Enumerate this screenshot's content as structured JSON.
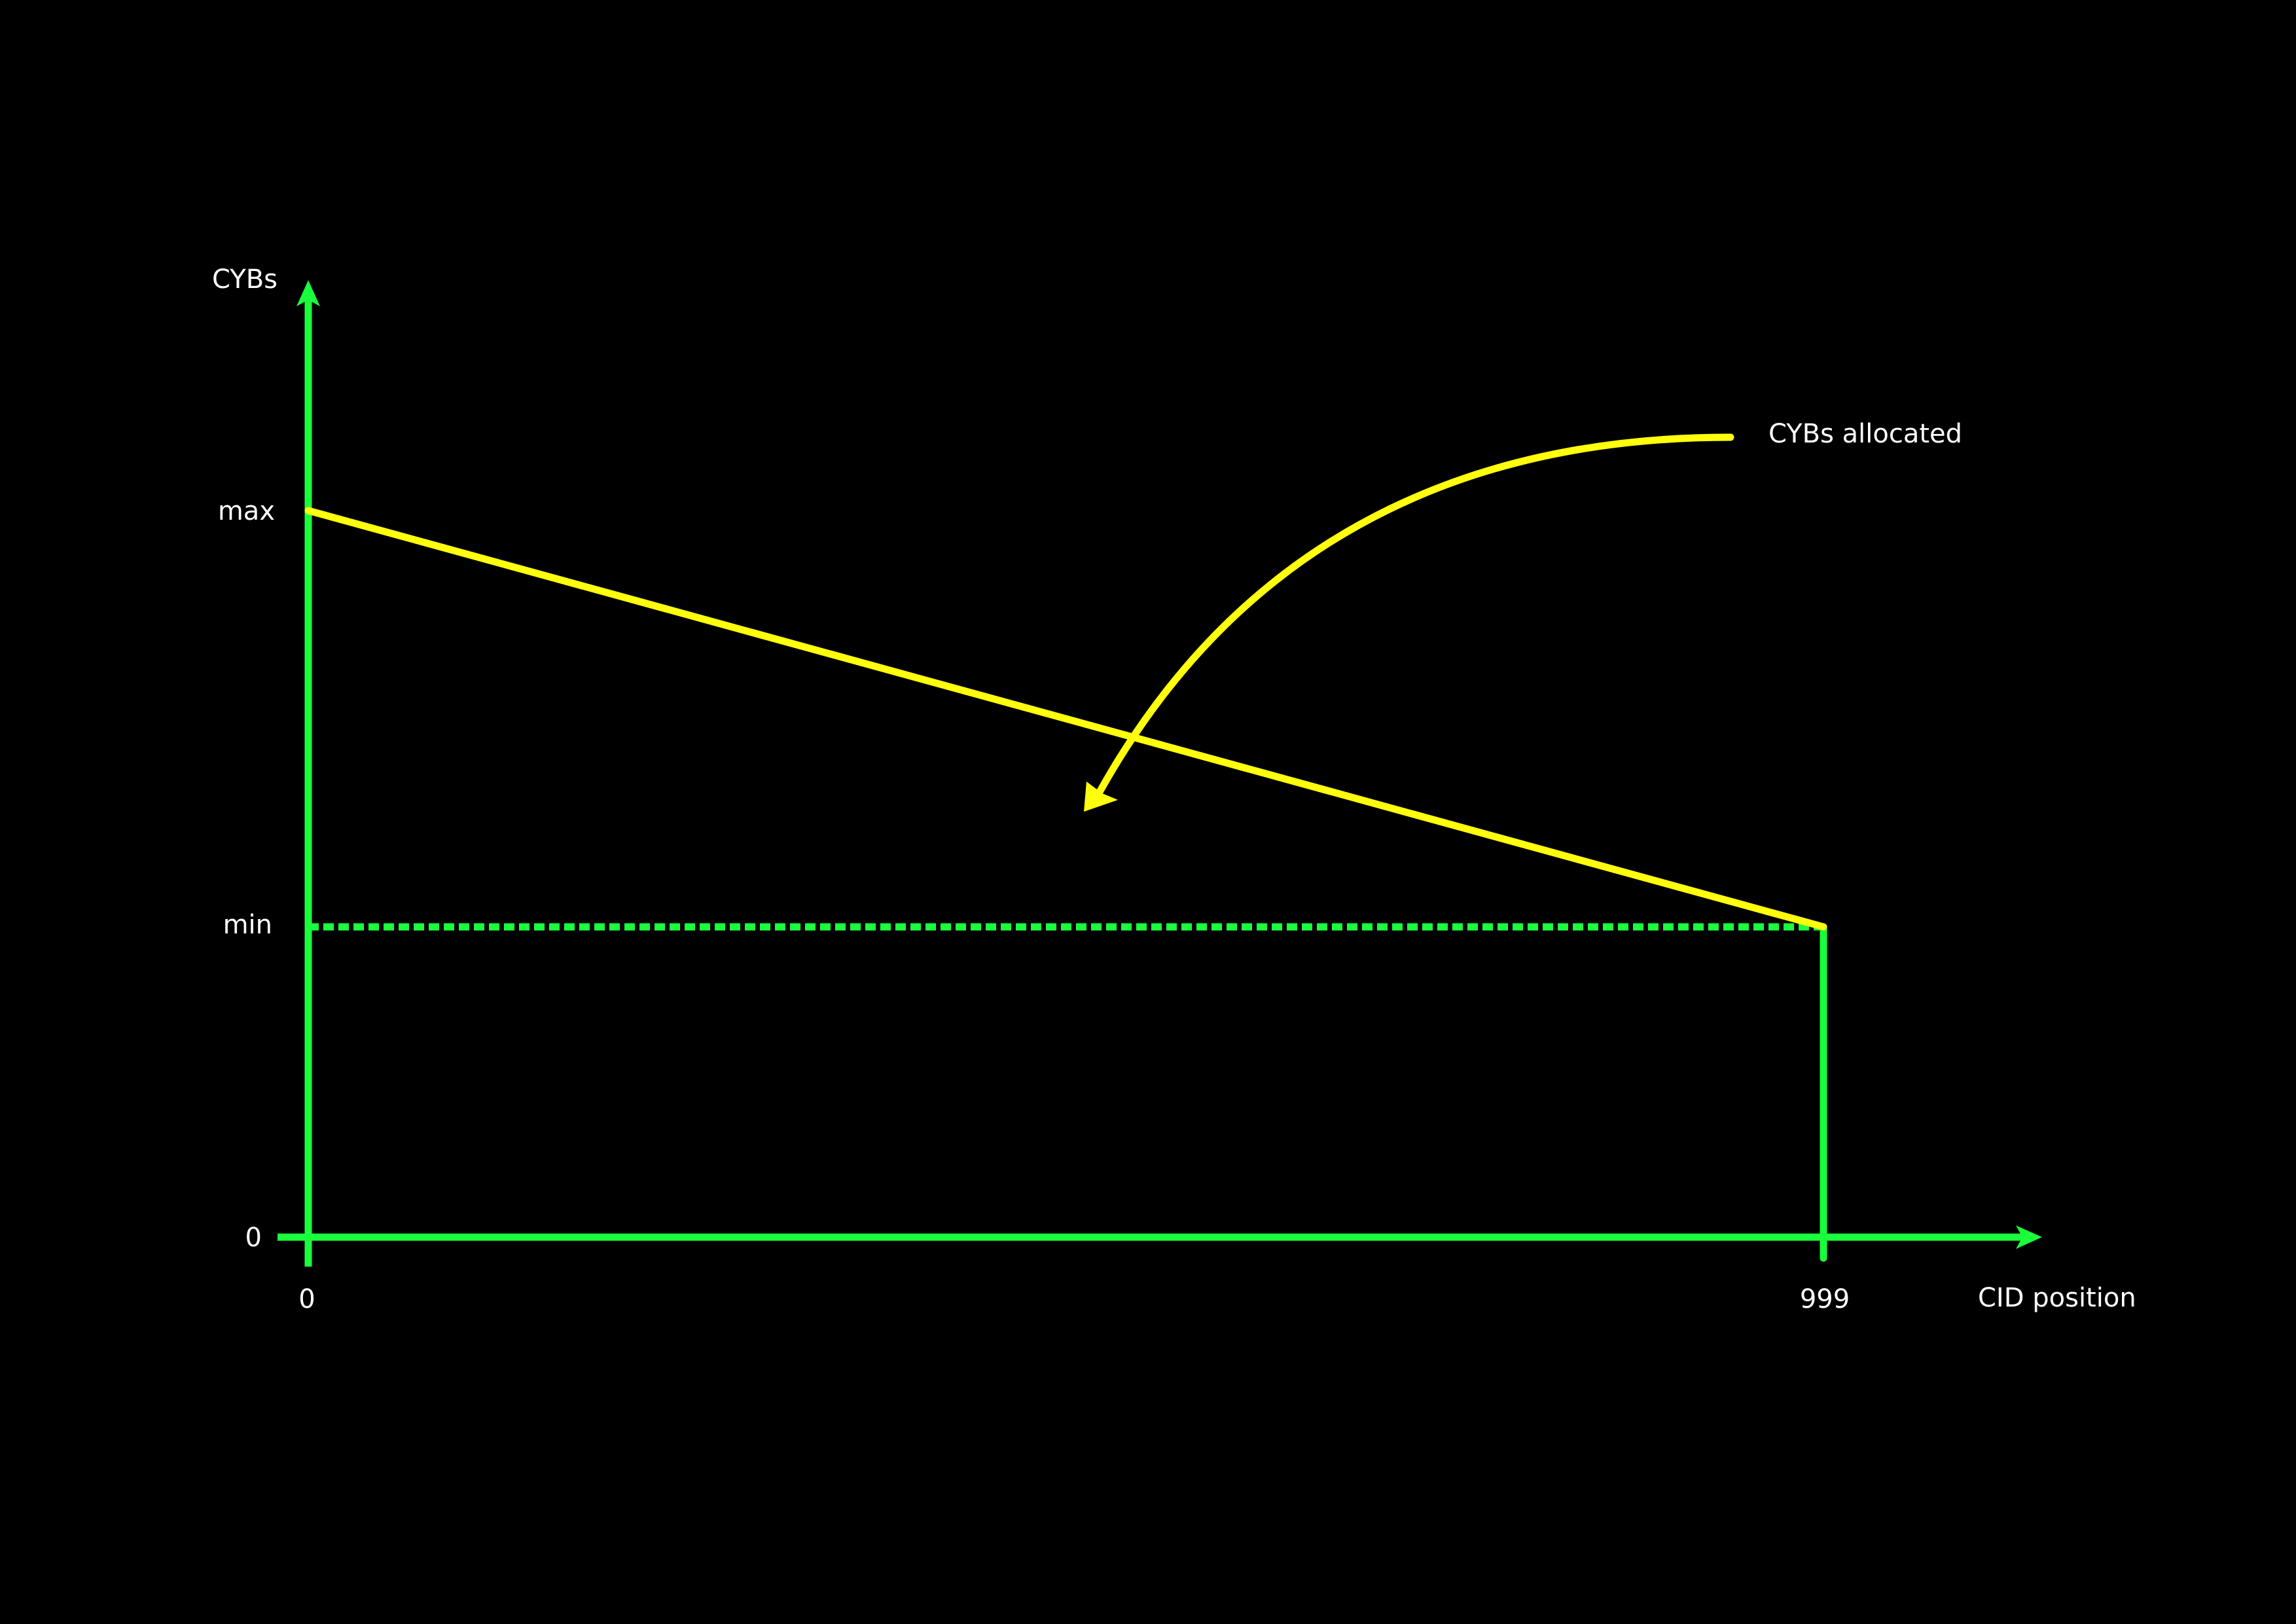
{
  "colors": {
    "background": "#000000",
    "axis": "#1aff3c",
    "series": "#ffff0d",
    "text": "#ffffff"
  },
  "chart_data": {
    "type": "line",
    "title": "",
    "xlabel": "CID position",
    "ylabel": "CYBs",
    "xlim": [
      0,
      999
    ],
    "y_scale": "categorical-levels",
    "x_ticks": [
      "0",
      "999"
    ],
    "y_ticks": [
      "0",
      "min",
      "max"
    ],
    "grid": false,
    "series": [
      {
        "points": [
          {
            "x": 0,
            "y": "max"
          },
          {
            "x": 999,
            "y": "min"
          }
        ]
      }
    ],
    "reference_lines": [
      {
        "type": "horizontal",
        "y": "min",
        "style": "dashed"
      },
      {
        "type": "vertical",
        "x": 999,
        "style": "dashed"
      }
    ],
    "annotations": [
      {
        "text": "CYBs allocated",
        "points_to": "series",
        "style": "curved-arrow"
      }
    ]
  }
}
